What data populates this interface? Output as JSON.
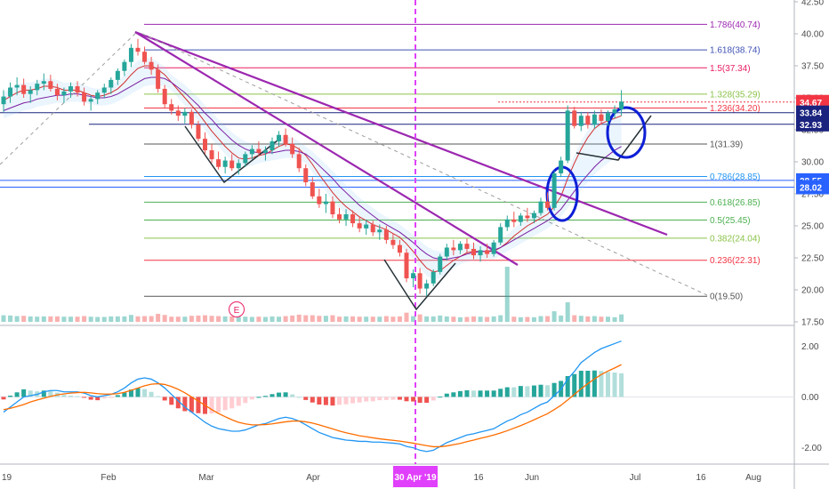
{
  "chart_data": [
    {
      "type": "candlestick",
      "title": "",
      "x_labels": [
        "Feb",
        "Mar",
        "Apr",
        "30 Apr '19",
        "16",
        "Jun",
        "Jul",
        "16",
        "Aug"
      ],
      "x_label_partial": "19",
      "price_axis": {
        "ylim": [
          17.5,
          42.5
        ],
        "ticks": [
          "17.50",
          "20.00",
          "22.50",
          "25.00",
          "27.50",
          "30.00",
          "32.50",
          "35.00",
          "37.50",
          "40.00",
          "42.50"
        ]
      },
      "price_tags": [
        {
          "label": "34.67",
          "value": 34.67,
          "color": "#f23645"
        },
        {
          "label": "33.84",
          "value": 33.84,
          "color": "#1a237e"
        },
        {
          "label": "32.93",
          "value": 32.93,
          "color": "#1a237e"
        },
        {
          "label": "28.55",
          "value": 28.55,
          "color": "#2962ff"
        },
        {
          "label": "28.02",
          "value": 28.02,
          "color": "#2962ff"
        }
      ],
      "fib_levels": [
        {
          "label": "1.786(40.74)",
          "value": 40.74,
          "color": "#9c27b0"
        },
        {
          "label": "1.618(38.74)",
          "value": 38.74,
          "color": "#3f51b5"
        },
        {
          "label": "1.5(37.34)",
          "value": 37.34,
          "color": "#e91e63"
        },
        {
          "label": "1.328(35.29)",
          "value": 35.29,
          "color": "#8bc34a"
        },
        {
          "label": "1.236(34.20)",
          "value": 34.2,
          "color": "#f23645"
        },
        {
          "label": "1(31.39)",
          "value": 31.39,
          "color": "#555555"
        },
        {
          "label": "0.786(28.85)",
          "value": 28.85,
          "color": "#2196f3"
        },
        {
          "label": "0.618(26.85)",
          "value": 26.85,
          "color": "#4caf50"
        },
        {
          "label": "0.5(25.45)",
          "value": 25.45,
          "color": "#4caf50"
        },
        {
          "label": "0.382(24.04)",
          "value": 24.04,
          "color": "#8bc34a"
        },
        {
          "label": "0.236(22.31)",
          "value": 22.31,
          "color": "#f23645"
        },
        {
          "label": "0(19.50)",
          "value": 19.5,
          "color": "#555555"
        }
      ],
      "event_marker": "E",
      "candles_ohlc": [
        [
          34.5,
          35.6,
          33.9,
          35.1
        ],
        [
          35.1,
          36.2,
          34.6,
          35.8
        ],
        [
          35.8,
          36.6,
          35.2,
          36.0
        ],
        [
          36.0,
          36.5,
          35.0,
          35.3
        ],
        [
          35.3,
          35.9,
          34.6,
          35.6
        ],
        [
          35.6,
          36.4,
          35.2,
          36.1
        ],
        [
          36.1,
          36.9,
          35.6,
          36.3
        ],
        [
          36.3,
          36.8,
          35.5,
          35.7
        ],
        [
          35.7,
          36.1,
          34.8,
          35.2
        ],
        [
          35.2,
          35.8,
          34.6,
          35.5
        ],
        [
          35.5,
          36.2,
          35.0,
          35.9
        ],
        [
          35.9,
          36.3,
          35.1,
          35.4
        ],
        [
          35.4,
          35.8,
          34.4,
          34.7
        ],
        [
          34.7,
          35.2,
          34.0,
          34.9
        ],
        [
          34.9,
          35.6,
          34.5,
          35.4
        ],
        [
          35.4,
          36.1,
          35.0,
          35.8
        ],
        [
          35.8,
          36.6,
          35.3,
          36.4
        ],
        [
          36.4,
          37.3,
          36.0,
          37.1
        ],
        [
          37.1,
          38.0,
          36.7,
          37.8
        ],
        [
          37.8,
          39.2,
          37.4,
          38.9
        ],
        [
          38.9,
          39.6,
          38.3,
          38.6
        ],
        [
          38.6,
          39.0,
          37.6,
          37.8
        ],
        [
          37.8,
          38.2,
          36.8,
          37.2
        ],
        [
          37.2,
          37.6,
          35.4,
          35.7
        ],
        [
          35.7,
          36.0,
          34.2,
          34.5
        ],
        [
          34.5,
          34.9,
          33.7,
          34.0
        ],
        [
          34.0,
          34.4,
          33.2,
          33.6
        ],
        [
          33.6,
          34.2,
          33.0,
          33.9
        ],
        [
          33.9,
          34.1,
          32.6,
          32.9
        ],
        [
          32.9,
          33.2,
          31.6,
          31.8
        ],
        [
          31.8,
          32.3,
          30.6,
          30.9
        ],
        [
          30.9,
          31.4,
          29.9,
          30.2
        ],
        [
          30.2,
          30.8,
          29.4,
          29.6
        ],
        [
          29.6,
          30.4,
          29.1,
          30.1
        ],
        [
          30.1,
          30.6,
          29.3,
          29.5
        ],
        [
          29.5,
          30.2,
          29.0,
          29.9
        ],
        [
          29.9,
          30.8,
          29.6,
          30.6
        ],
        [
          30.6,
          31.3,
          30.2,
          31.0
        ],
        [
          31.0,
          31.6,
          30.4,
          30.7
        ],
        [
          30.7,
          31.2,
          30.1,
          30.9
        ],
        [
          30.9,
          31.9,
          30.6,
          31.6
        ],
        [
          31.6,
          32.4,
          31.2,
          32.1
        ],
        [
          32.1,
          32.6,
          31.2,
          31.4
        ],
        [
          31.4,
          31.9,
          30.3,
          30.6
        ],
        [
          30.6,
          31.1,
          29.2,
          29.5
        ],
        [
          29.5,
          29.8,
          28.1,
          28.4
        ],
        [
          28.4,
          28.8,
          27.1,
          27.3
        ],
        [
          27.3,
          27.9,
          26.4,
          26.7
        ],
        [
          26.7,
          27.5,
          26.0,
          26.9
        ],
        [
          26.9,
          27.3,
          25.6,
          25.9
        ],
        [
          25.9,
          26.4,
          25.2,
          25.5
        ],
        [
          25.5,
          26.3,
          25.0,
          25.9
        ],
        [
          25.9,
          26.2,
          24.9,
          25.2
        ],
        [
          25.2,
          25.7,
          24.5,
          24.8
        ],
        [
          24.8,
          25.5,
          24.3,
          25.1
        ],
        [
          25.1,
          25.4,
          24.2,
          24.5
        ],
        [
          24.5,
          25.1,
          23.9,
          24.7
        ],
        [
          24.7,
          25.0,
          23.6,
          23.9
        ],
        [
          23.9,
          24.4,
          23.2,
          23.5
        ],
        [
          23.5,
          23.9,
          22.6,
          22.9
        ],
        [
          22.9,
          23.2,
          20.6,
          20.9
        ],
        [
          20.9,
          21.6,
          20.2,
          21.3
        ],
        [
          21.3,
          21.7,
          19.7,
          20.1
        ],
        [
          20.1,
          20.8,
          19.5,
          20.5
        ],
        [
          20.5,
          21.6,
          20.3,
          21.4
        ],
        [
          21.4,
          22.8,
          21.2,
          22.6
        ],
        [
          22.6,
          23.6,
          22.3,
          23.3
        ],
        [
          23.3,
          23.9,
          22.7,
          23.1
        ],
        [
          23.1,
          23.8,
          22.8,
          23.6
        ],
        [
          23.6,
          24.0,
          22.9,
          23.2
        ],
        [
          23.2,
          23.7,
          22.4,
          22.7
        ],
        [
          22.7,
          23.4,
          22.2,
          23.1
        ],
        [
          23.1,
          23.6,
          22.5,
          22.8
        ],
        [
          22.8,
          23.9,
          22.6,
          23.7
        ],
        [
          23.7,
          25.2,
          23.5,
          24.9
        ],
        [
          24.9,
          25.8,
          24.6,
          25.5
        ],
        [
          25.5,
          26.1,
          24.9,
          25.3
        ],
        [
          25.3,
          26.0,
          25.0,
          25.8
        ],
        [
          25.8,
          26.4,
          25.3,
          25.6
        ],
        [
          25.6,
          26.2,
          25.2,
          26.0
        ],
        [
          26.0,
          27.2,
          25.8,
          26.9
        ],
        [
          26.9,
          27.6,
          26.2,
          26.4
        ],
        [
          26.4,
          29.3,
          26.2,
          29.1
        ],
        [
          29.1,
          30.4,
          28.8,
          30.1
        ],
        [
          30.1,
          34.4,
          29.9,
          34.0
        ],
        [
          34.0,
          34.3,
          32.6,
          32.8
        ],
        [
          32.8,
          33.9,
          32.4,
          33.6
        ],
        [
          33.6,
          33.9,
          32.6,
          32.9
        ],
        [
          32.9,
          34.0,
          32.6,
          33.7
        ],
        [
          33.7,
          34.1,
          32.9,
          33.2
        ],
        [
          33.2,
          34.0,
          32.8,
          33.8
        ],
        [
          33.8,
          34.4,
          33.4,
          34.1
        ],
        [
          34.1,
          35.6,
          33.6,
          34.7
        ]
      ],
      "moving_averages": [
        {
          "name": "",
          "color": "#d32f2f",
          "values": [
            34.8,
            35.1,
            35.4,
            35.6,
            35.6,
            35.7,
            35.9,
            35.9,
            35.8,
            35.6,
            35.6,
            35.6,
            35.4,
            35.2,
            35.1,
            35.2,
            35.4,
            35.7,
            36.2,
            36.8,
            37.3,
            37.5,
            37.5,
            37.2,
            36.8,
            36.2,
            35.6,
            35.0,
            34.4,
            33.8,
            33.1,
            32.4,
            31.8,
            31.2,
            30.7,
            30.3,
            30.2,
            30.3,
            30.5,
            30.6,
            30.9,
            31.2,
            31.4,
            31.3,
            31.0,
            30.5,
            29.8,
            29.0,
            28.3,
            27.6,
            27.0,
            26.5,
            26.1,
            25.7,
            25.4,
            25.1,
            24.9,
            24.7,
            24.4,
            24.1,
            23.6,
            23.0,
            22.3,
            21.7,
            21.4,
            21.5,
            21.9,
            22.3,
            22.6,
            22.9,
            23.0,
            23.0,
            23.0,
            23.0,
            23.3,
            23.7,
            24.2,
            24.6,
            25.0,
            25.3,
            25.6,
            25.9,
            26.5,
            27.3,
            28.7,
            29.9,
            31.0,
            31.9,
            32.6,
            33.0,
            33.2,
            33.4,
            33.6
          ]
        },
        {
          "name": "",
          "color": "#7b1fa2",
          "values": [
            34.0,
            34.2,
            34.4,
            34.6,
            34.7,
            34.9,
            35.0,
            35.1,
            35.2,
            35.2,
            35.3,
            35.3,
            35.2,
            35.1,
            35.0,
            35.0,
            35.1,
            35.3,
            35.6,
            35.9,
            36.2,
            36.5,
            36.6,
            36.6,
            36.5,
            36.2,
            35.8,
            35.4,
            34.9,
            34.4,
            33.8,
            33.3,
            32.7,
            32.2,
            31.7,
            31.3,
            31.0,
            30.8,
            30.7,
            30.7,
            30.7,
            30.8,
            30.9,
            30.9,
            30.8,
            30.6,
            30.2,
            29.7,
            29.2,
            28.7,
            28.1,
            27.6,
            27.1,
            26.6,
            26.2,
            25.8,
            25.4,
            25.1,
            24.8,
            24.5,
            24.1,
            23.7,
            23.2,
            22.8,
            22.5,
            22.4,
            22.4,
            22.5,
            22.6,
            22.8,
            22.9,
            23.0,
            23.0,
            23.1,
            23.3,
            23.6,
            23.9,
            24.2,
            24.5,
            24.8,
            25.1,
            25.4,
            25.8,
            26.3,
            27.0,
            27.7,
            28.4,
            29.0,
            29.6,
            30.1,
            30.5,
            30.9,
            31.2
          ]
        }
      ],
      "indicator": {
        "type": "macd",
        "ylim": [
          -2.4,
          2.5
        ],
        "ticks": [
          "2.00",
          "0.00",
          "-2.00"
        ],
        "macd_color": "#2196f3",
        "signal_color": "#ff6d00",
        "macd": [
          -0.6,
          -0.4,
          -0.2,
          0.0,
          0.05,
          0.1,
          0.2,
          0.25,
          0.25,
          0.2,
          0.2,
          0.2,
          0.15,
          0.05,
          0.0,
          0.05,
          0.1,
          0.2,
          0.35,
          0.55,
          0.7,
          0.75,
          0.7,
          0.55,
          0.35,
          0.1,
          -0.15,
          -0.4,
          -0.6,
          -0.8,
          -1.0,
          -1.15,
          -1.25,
          -1.3,
          -1.35,
          -1.35,
          -1.3,
          -1.2,
          -1.1,
          -1.05,
          -0.95,
          -0.85,
          -0.8,
          -0.85,
          -0.95,
          -1.1,
          -1.25,
          -1.4,
          -1.5,
          -1.6,
          -1.65,
          -1.7,
          -1.72,
          -1.75,
          -1.75,
          -1.78,
          -1.78,
          -1.8,
          -1.82,
          -1.85,
          -1.95,
          -2.0,
          -2.1,
          -2.15,
          -2.1,
          -1.95,
          -1.8,
          -1.7,
          -1.6,
          -1.5,
          -1.45,
          -1.38,
          -1.32,
          -1.25,
          -1.1,
          -0.95,
          -0.85,
          -0.7,
          -0.6,
          -0.45,
          -0.3,
          -0.2,
          0.05,
          0.3,
          0.7,
          1.0,
          1.35,
          1.55,
          1.75,
          1.9,
          2.0,
          2.1,
          2.2
        ],
        "signal": [
          -0.5,
          -0.45,
          -0.38,
          -0.3,
          -0.2,
          -0.12,
          -0.05,
          0.02,
          0.08,
          0.12,
          0.15,
          0.17,
          0.18,
          0.16,
          0.13,
          0.11,
          0.11,
          0.13,
          0.18,
          0.26,
          0.35,
          0.44,
          0.5,
          0.52,
          0.49,
          0.41,
          0.3,
          0.16,
          0.0,
          -0.16,
          -0.33,
          -0.5,
          -0.65,
          -0.78,
          -0.9,
          -1.0,
          -1.06,
          -1.1,
          -1.1,
          -1.09,
          -1.06,
          -1.02,
          -0.98,
          -0.95,
          -0.95,
          -0.98,
          -1.03,
          -1.1,
          -1.18,
          -1.26,
          -1.34,
          -1.41,
          -1.47,
          -1.53,
          -1.57,
          -1.61,
          -1.65,
          -1.68,
          -1.71,
          -1.74,
          -1.78,
          -1.82,
          -1.87,
          -1.92,
          -1.96,
          -1.96,
          -1.93,
          -1.88,
          -1.83,
          -1.76,
          -1.7,
          -1.63,
          -1.57,
          -1.5,
          -1.42,
          -1.33,
          -1.23,
          -1.13,
          -1.02,
          -0.9,
          -0.78,
          -0.66,
          -0.5,
          -0.33,
          -0.12,
          0.1,
          0.32,
          0.52,
          0.71,
          0.88,
          1.02,
          1.14,
          1.27
        ]
      }
    }
  ]
}
